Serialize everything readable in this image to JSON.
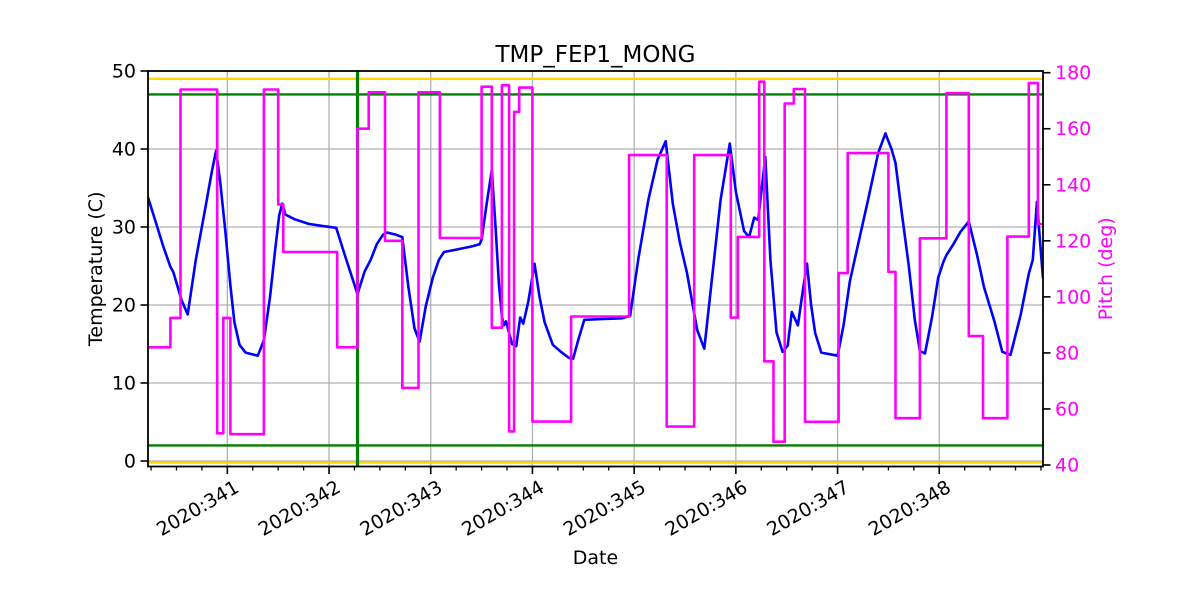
{
  "figure": {
    "title": "TMP_FEP1_MONG"
  },
  "chart_data": {
    "type": "line",
    "title": "TMP_FEP1_MONG",
    "xlabel": "Date",
    "ylabel": "Temperature (C)",
    "y2label": "Pitch (deg)",
    "grid": true,
    "legend": "none",
    "x_range": [
      340.22,
      349.02
    ],
    "y_range": [
      -0.705,
      50.0
    ],
    "y2_range": [
      39.46,
      180.61
    ],
    "x_ticks": [
      {
        "value": 341,
        "label": "2020:341"
      },
      {
        "value": 342,
        "label": "2020:342"
      },
      {
        "value": 343,
        "label": "2020:343"
      },
      {
        "value": 344,
        "label": "2020:344"
      },
      {
        "value": 345,
        "label": "2020:345"
      },
      {
        "value": 346,
        "label": "2020:346"
      },
      {
        "value": 347,
        "label": "2020:347"
      },
      {
        "value": 348,
        "label": "2020:348"
      }
    ],
    "x_minor_step": 0.25,
    "y_ticks": [
      0,
      10,
      20,
      30,
      40,
      50
    ],
    "y2_ticks": [
      40,
      60,
      80,
      100,
      120,
      140,
      160,
      180
    ],
    "colors": {
      "temperature": "#0000ff",
      "pitch": "#ff00ff",
      "caution": "#ffd700",
      "planning": "#008000",
      "grid": "#b0b0b0",
      "axis": "#000000",
      "y2_text": "#ff00ff"
    },
    "limit_lines": [
      {
        "name": "yellow-high-limit",
        "axis": "y",
        "value": 49.0,
        "color_key": "caution"
      },
      {
        "name": "yellow-low-limit",
        "axis": "y",
        "value": -0.2,
        "color_key": "caution"
      },
      {
        "name": "green-high-limit",
        "axis": "y",
        "value": 47.0,
        "color_key": "planning"
      },
      {
        "name": "green-low-limit",
        "axis": "y",
        "value": 2.0,
        "color_key": "planning"
      }
    ],
    "vlines": [
      {
        "name": "event-marker",
        "x": 342.28,
        "color_key": "planning",
        "width": 3.2
      }
    ],
    "series": [
      {
        "name": "temperature",
        "axis": "y",
        "mode": "line",
        "color_key": "temperature",
        "points": [
          [
            340.22,
            33.8
          ],
          [
            340.29,
            30.9
          ],
          [
            340.37,
            27.5
          ],
          [
            340.44,
            24.9
          ],
          [
            340.47,
            24.2
          ],
          [
            340.55,
            20.6
          ],
          [
            340.61,
            18.8
          ],
          [
            340.69,
            25.8
          ],
          [
            340.78,
            32.2
          ],
          [
            340.85,
            37.3
          ],
          [
            340.89,
            39.8
          ],
          [
            340.93,
            35.8
          ],
          [
            340.98,
            29.5
          ],
          [
            341.03,
            22.5
          ],
          [
            341.07,
            17.8
          ],
          [
            341.12,
            14.9
          ],
          [
            341.18,
            13.9
          ],
          [
            341.3,
            13.5
          ],
          [
            341.36,
            15.5
          ],
          [
            341.42,
            21.0
          ],
          [
            341.47,
            27.0
          ],
          [
            341.51,
            31.5
          ],
          [
            341.54,
            33.0
          ],
          [
            341.57,
            31.6
          ],
          [
            341.66,
            31.0
          ],
          [
            341.8,
            30.4
          ],
          [
            341.95,
            30.1
          ],
          [
            342.07,
            29.9
          ],
          [
            342.16,
            26.2
          ],
          [
            342.22,
            23.8
          ],
          [
            342.28,
            21.4
          ],
          [
            342.35,
            24.3
          ],
          [
            342.41,
            25.8
          ],
          [
            342.47,
            27.8
          ],
          [
            342.53,
            29.0
          ],
          [
            342.57,
            29.3
          ],
          [
            342.66,
            29.0
          ],
          [
            342.72,
            28.7
          ],
          [
            342.78,
            22.3
          ],
          [
            342.84,
            17.0
          ],
          [
            342.89,
            15.3
          ],
          [
            342.95,
            19.8
          ],
          [
            343.02,
            23.5
          ],
          [
            343.08,
            25.8
          ],
          [
            343.13,
            26.8
          ],
          [
            343.25,
            27.1
          ],
          [
            343.4,
            27.5
          ],
          [
            343.48,
            27.8
          ],
          [
            343.5,
            28.4
          ],
          [
            343.55,
            33.0
          ],
          [
            343.6,
            37.3
          ],
          [
            343.64,
            29.5
          ],
          [
            343.67,
            22.7
          ],
          [
            343.7,
            18.5
          ],
          [
            343.72,
            17.4
          ],
          [
            343.74,
            17.9
          ],
          [
            343.77,
            16.4
          ],
          [
            343.8,
            15.0
          ],
          [
            343.84,
            14.7
          ],
          [
            343.88,
            18.4
          ],
          [
            343.91,
            17.6
          ],
          [
            343.96,
            20.5
          ],
          [
            344.02,
            25.3
          ],
          [
            344.07,
            21.0
          ],
          [
            344.12,
            17.8
          ],
          [
            344.2,
            14.9
          ],
          [
            344.28,
            14.0
          ],
          [
            344.36,
            13.2
          ],
          [
            344.4,
            13.1
          ],
          [
            344.45,
            15.5
          ],
          [
            344.51,
            18.1
          ],
          [
            344.7,
            18.2
          ],
          [
            344.88,
            18.3
          ],
          [
            344.96,
            18.6
          ],
          [
            345.04,
            25.8
          ],
          [
            345.14,
            33.5
          ],
          [
            345.23,
            38.6
          ],
          [
            345.31,
            41.0
          ],
          [
            345.38,
            33.0
          ],
          [
            345.45,
            28.0
          ],
          [
            345.52,
            24.1
          ],
          [
            345.62,
            16.8
          ],
          [
            345.69,
            14.4
          ],
          [
            345.77,
            24.0
          ],
          [
            345.85,
            33.5
          ],
          [
            345.94,
            40.7
          ],
          [
            346.0,
            34.5
          ],
          [
            346.08,
            29.5
          ],
          [
            346.13,
            28.7
          ],
          [
            346.18,
            31.2
          ],
          [
            346.22,
            30.9
          ],
          [
            346.29,
            39.0
          ],
          [
            346.34,
            25.8
          ],
          [
            346.4,
            16.5
          ],
          [
            346.46,
            14.0
          ],
          [
            346.51,
            14.8
          ],
          [
            346.55,
            19.1
          ],
          [
            346.61,
            17.4
          ],
          [
            346.66,
            22.0
          ],
          [
            346.7,
            25.3
          ],
          [
            346.74,
            20.0
          ],
          [
            346.78,
            16.4
          ],
          [
            346.84,
            13.9
          ],
          [
            347.0,
            13.5
          ],
          [
            347.06,
            17.5
          ],
          [
            347.12,
            23.0
          ],
          [
            347.19,
            27.1
          ],
          [
            347.3,
            33.5
          ],
          [
            347.4,
            39.5
          ],
          [
            347.47,
            42.0
          ],
          [
            347.53,
            40.0
          ],
          [
            347.57,
            38.2
          ],
          [
            347.63,
            32.0
          ],
          [
            347.7,
            25.0
          ],
          [
            347.76,
            18.0
          ],
          [
            347.81,
            14.1
          ],
          [
            347.86,
            13.8
          ],
          [
            347.93,
            18.5
          ],
          [
            347.99,
            23.5
          ],
          [
            348.04,
            25.5
          ],
          [
            348.07,
            26.4
          ],
          [
            348.13,
            27.6
          ],
          [
            348.21,
            29.4
          ],
          [
            348.29,
            30.7
          ],
          [
            348.37,
            26.5
          ],
          [
            348.44,
            22.3
          ],
          [
            348.54,
            18.0
          ],
          [
            348.62,
            14.0
          ],
          [
            348.7,
            13.6
          ],
          [
            348.8,
            18.7
          ],
          [
            348.88,
            24.0
          ],
          [
            348.92,
            25.8
          ],
          [
            348.96,
            33.2
          ],
          [
            349.02,
            23.4
          ]
        ]
      },
      {
        "name": "pitch",
        "axis": "y2",
        "mode": "step",
        "color_key": "pitch",
        "points": [
          [
            340.22,
            82.0
          ],
          [
            340.44,
            92.5
          ],
          [
            340.54,
            174.0
          ],
          [
            340.9,
            51.3
          ],
          [
            340.96,
            92.5
          ],
          [
            341.03,
            51.0
          ],
          [
            341.36,
            174.0
          ],
          [
            341.5,
            133.0
          ],
          [
            341.55,
            116.0
          ],
          [
            342.08,
            82.0
          ],
          [
            342.28,
            160.0
          ],
          [
            342.39,
            173.0
          ],
          [
            342.55,
            120.0
          ],
          [
            342.72,
            67.5
          ],
          [
            342.88,
            173.0
          ],
          [
            343.09,
            121.0
          ],
          [
            343.5,
            175.0
          ],
          [
            343.6,
            89.0
          ],
          [
            343.7,
            175.5
          ],
          [
            343.77,
            52.0
          ],
          [
            343.82,
            166.0
          ],
          [
            343.87,
            174.7
          ],
          [
            344.0,
            55.5
          ],
          [
            344.38,
            93.0
          ],
          [
            344.95,
            150.6
          ],
          [
            345.32,
            53.7
          ],
          [
            345.59,
            150.6
          ],
          [
            345.95,
            92.6
          ],
          [
            346.02,
            121.4
          ],
          [
            346.23,
            176.8
          ],
          [
            346.28,
            77.0
          ],
          [
            346.37,
            48.3
          ],
          [
            346.48,
            169.0
          ],
          [
            346.57,
            174.2
          ],
          [
            346.68,
            55.4
          ],
          [
            347.01,
            108.5
          ],
          [
            347.1,
            151.3
          ],
          [
            347.5,
            108.9
          ],
          [
            347.57,
            56.7
          ],
          [
            347.81,
            120.9
          ],
          [
            348.07,
            172.7
          ],
          [
            348.29,
            86.0
          ],
          [
            348.43,
            56.7
          ],
          [
            348.67,
            121.5
          ],
          [
            348.88,
            176.3
          ],
          [
            348.97,
            126.0
          ],
          [
            349.02,
            126.0
          ]
        ]
      }
    ]
  }
}
